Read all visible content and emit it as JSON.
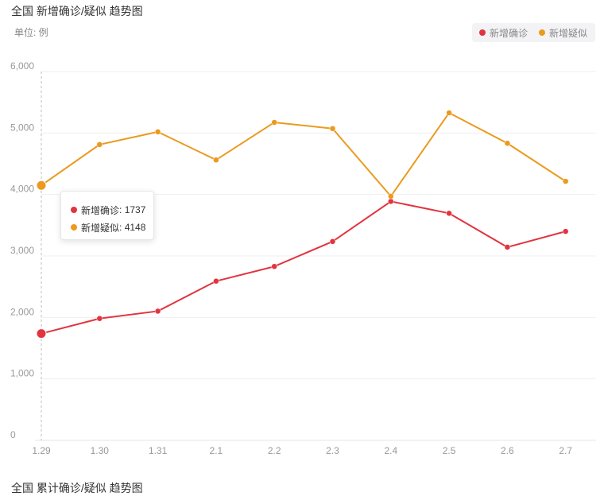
{
  "title": "全国 新增确诊/疑似 趋势图",
  "unit_label": "单位: 例",
  "next_title": "全国 累计确诊/疑似 趋势图",
  "colors": {
    "confirmed": "#e2343f",
    "suspected": "#eb9a1e"
  },
  "legend": [
    {
      "label": "新增确诊",
      "color": "#e2343f"
    },
    {
      "label": "新增疑似",
      "color": "#eb9a1e"
    }
  ],
  "tooltip": {
    "rows": [
      {
        "name": "新增确诊",
        "value": "1737",
        "color": "#e2343f"
      },
      {
        "name": "新增疑似",
        "value": "4148",
        "color": "#eb9a1e"
      }
    ]
  },
  "chart_data": {
    "type": "line",
    "title": "全国 新增确诊/疑似 趋势图",
    "ylabel": "单位: 例",
    "categories": [
      "1.29",
      "1.30",
      "1.31",
      "2.1",
      "2.2",
      "2.3",
      "2.4",
      "2.5",
      "2.6",
      "2.7"
    ],
    "ylim": [
      0,
      6000
    ],
    "yticks": [
      0,
      1000,
      2000,
      3000,
      4000,
      5000,
      6000
    ],
    "ytick_labels": [
      "0",
      "1,000",
      "2,000",
      "3,000",
      "4,000",
      "5,000",
      "6,000"
    ],
    "grid": true,
    "legend_position": "top-right",
    "highlighted_index": 0,
    "series": [
      {
        "name": "新增确诊",
        "color": "#e2343f",
        "values": [
          1737,
          1982,
          2102,
          2590,
          2829,
          3235,
          3887,
          3694,
          3143,
          3399
        ]
      },
      {
        "name": "新增疑似",
        "color": "#eb9a1e",
        "values": [
          4148,
          4812,
          5019,
          4562,
          5173,
          5072,
          3971,
          5328,
          4833,
          4214
        ]
      }
    ]
  }
}
